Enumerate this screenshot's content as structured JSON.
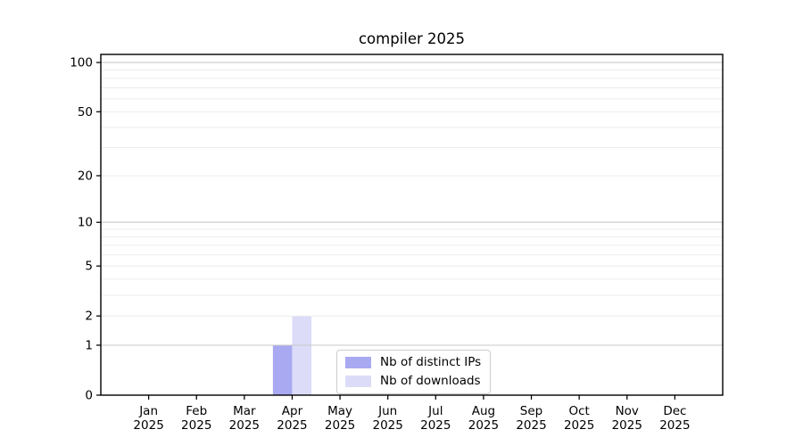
{
  "chart_data": {
    "type": "bar",
    "title": "compiler 2025",
    "categories": [
      "Jan 2025",
      "Feb 2025",
      "Mar 2025",
      "Apr 2025",
      "May 2025",
      "Jun 2025",
      "Jul 2025",
      "Aug 2025",
      "Sep 2025",
      "Oct 2025",
      "Nov 2025",
      "Dec 2025"
    ],
    "series": [
      {
        "name": "Nb of distinct IPs",
        "color": "#a9a9f2",
        "values": [
          0,
          0,
          0,
          1,
          0,
          0,
          0,
          0,
          0,
          0,
          0,
          0
        ]
      },
      {
        "name": "Nb of downloads",
        "color": "#dcdcf8",
        "values": [
          0,
          0,
          0,
          2,
          0,
          0,
          0,
          0,
          0,
          0,
          0,
          0
        ]
      }
    ],
    "xlabel": "",
    "ylabel": "",
    "yticks": [
      0,
      1,
      2,
      5,
      10,
      20,
      50,
      100
    ],
    "ylim": [
      0,
      112
    ],
    "yscale": "log1p",
    "grid": {
      "major_values": [
        1,
        10,
        100
      ],
      "minor_values": [
        2,
        3,
        4,
        5,
        6,
        7,
        8,
        9,
        20,
        30,
        40,
        50,
        60,
        70,
        80,
        90
      ],
      "major_color": "#c9c9c9",
      "minor_color": "#ececec"
    },
    "legend_position": "lower center",
    "text_color": "#000000",
    "spine_color": "#000000"
  }
}
